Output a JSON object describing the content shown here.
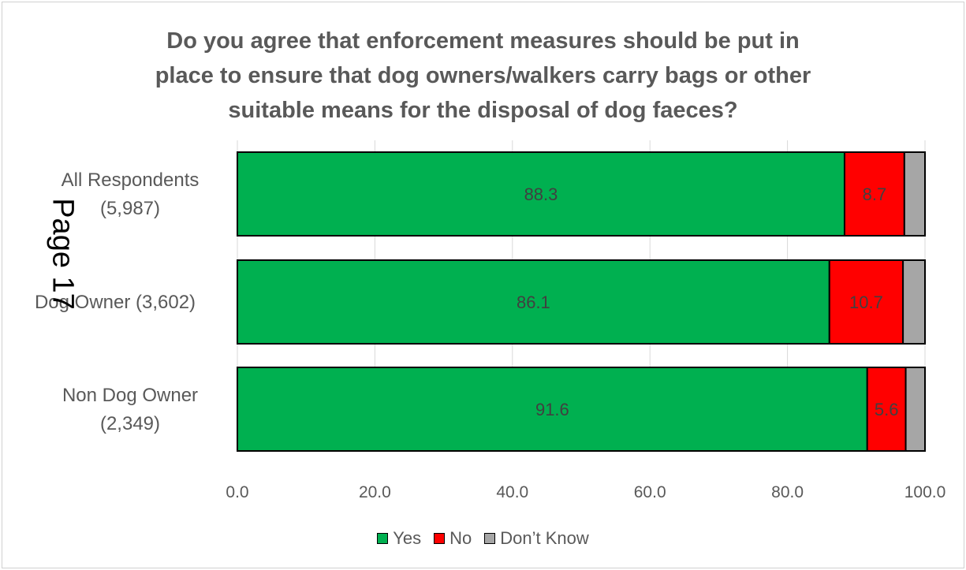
{
  "page_stamp": "Page 17",
  "chart_data": {
    "type": "bar",
    "orientation": "horizontal",
    "stacked": true,
    "title_lines": [
      "Do you agree that enforcement measures should be put in",
      "place to ensure that dog owners/walkers carry bags or other",
      "suitable means for the disposal of dog faeces?"
    ],
    "categories": [
      [
        "All Respondents",
        "(5,987)"
      ],
      [
        "Dog Owner (3,602)"
      ],
      [
        "Non Dog Owner",
        "(2,349)"
      ]
    ],
    "series": [
      {
        "name": "Yes",
        "color": "#00b050",
        "values": [
          88.3,
          86.1,
          91.6
        ],
        "labels": [
          "88.3",
          "86.1",
          "91.6"
        ]
      },
      {
        "name": "No",
        "color": "#ff0000",
        "values": [
          8.7,
          10.7,
          5.6
        ],
        "labels": [
          "8.7",
          "10.7",
          "5.6"
        ]
      },
      {
        "name": "Don’t Know",
        "color": "#a6a6a6",
        "values": [
          3.0,
          3.2,
          2.8
        ],
        "labels": [
          "",
          "",
          ""
        ]
      }
    ],
    "xlim": [
      0,
      100
    ],
    "xticks": [
      "0.0",
      "20.0",
      "40.0",
      "60.0",
      "80.0",
      "100.0"
    ],
    "grid": true,
    "legend": "bottom"
  }
}
